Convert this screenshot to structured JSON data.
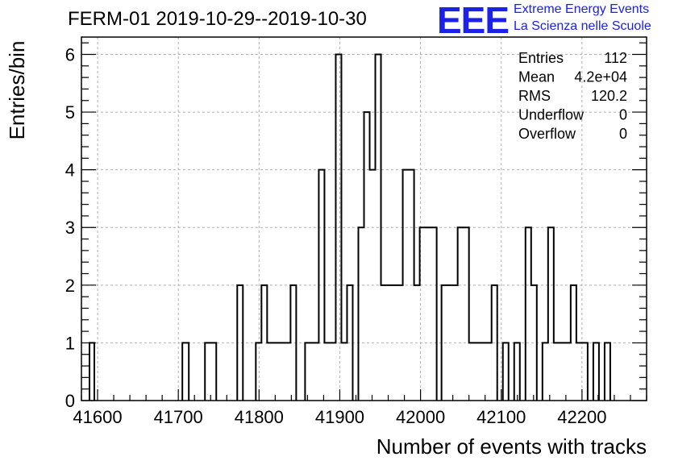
{
  "title": "FERM-01 2019-10-29--2019-10-30",
  "logo": {
    "mark": "EEE",
    "line1": "Extreme Energy Events",
    "line2": "La Scienza nelle Scuole",
    "color": "#1b22e6"
  },
  "stats": [
    {
      "label": "Entries",
      "value": "112"
    },
    {
      "label": "Mean",
      "value": "4.2e+04"
    },
    {
      "label": "RMS",
      "value": "120.2"
    },
    {
      "label": "Underflow",
      "value": "0"
    },
    {
      "label": "Overflow",
      "value": "0"
    }
  ],
  "chart_data": {
    "type": "histogram",
    "title": "FERM-01 2019-10-29--2019-10-30",
    "xlabel": "Number of events with tracks",
    "ylabel": "Entries/bin",
    "xlim": [
      41580,
      42280
    ],
    "ylim": [
      0,
      6.3
    ],
    "xticks": [
      41600,
      41700,
      41800,
      41900,
      42000,
      42100,
      42200
    ],
    "yticks": [
      0,
      1,
      2,
      3,
      4,
      5,
      6
    ],
    "grid": true,
    "line_color": "#000000",
    "bins": [
      {
        "x0": 41590,
        "x1": 41596,
        "count": 1
      },
      {
        "x0": 41705,
        "x1": 41713,
        "count": 1
      },
      {
        "x0": 41733,
        "x1": 41747,
        "count": 1
      },
      {
        "x0": 41773,
        "x1": 41780,
        "count": 2
      },
      {
        "x0": 41796,
        "x1": 41803,
        "count": 1
      },
      {
        "x0": 41803,
        "x1": 41810,
        "count": 2
      },
      {
        "x0": 41810,
        "x1": 41839,
        "count": 1
      },
      {
        "x0": 41839,
        "x1": 41846,
        "count": 2
      },
      {
        "x0": 41857,
        "x1": 41874,
        "count": 1
      },
      {
        "x0": 41874,
        "x1": 41881,
        "count": 4
      },
      {
        "x0": 41881,
        "x1": 41895,
        "count": 1
      },
      {
        "x0": 41895,
        "x1": 41902,
        "count": 6
      },
      {
        "x0": 41902,
        "x1": 41909,
        "count": 1
      },
      {
        "x0": 41909,
        "x1": 41916,
        "count": 2
      },
      {
        "x0": 41923,
        "x1": 41930,
        "count": 3
      },
      {
        "x0": 41930,
        "x1": 41937,
        "count": 5
      },
      {
        "x0": 41937,
        "x1": 41944,
        "count": 4
      },
      {
        "x0": 41944,
        "x1": 41951,
        "count": 6
      },
      {
        "x0": 41951,
        "x1": 41978,
        "count": 2
      },
      {
        "x0": 41978,
        "x1": 41992,
        "count": 4
      },
      {
        "x0": 41992,
        "x1": 41999,
        "count": 2
      },
      {
        "x0": 41999,
        "x1": 42020,
        "count": 3
      },
      {
        "x0": 42026,
        "x1": 42046,
        "count": 2
      },
      {
        "x0": 42046,
        "x1": 42060,
        "count": 3
      },
      {
        "x0": 42060,
        "x1": 42088,
        "count": 1
      },
      {
        "x0": 42088,
        "x1": 42095,
        "count": 2
      },
      {
        "x0": 42102,
        "x1": 42109,
        "count": 1
      },
      {
        "x0": 42116,
        "x1": 42123,
        "count": 1
      },
      {
        "x0": 42130,
        "x1": 42137,
        "count": 3
      },
      {
        "x0": 42137,
        "x1": 42144,
        "count": 2
      },
      {
        "x0": 42151,
        "x1": 42158,
        "count": 1
      },
      {
        "x0": 42158,
        "x1": 42165,
        "count": 3
      },
      {
        "x0": 42165,
        "x1": 42186,
        "count": 1
      },
      {
        "x0": 42186,
        "x1": 42193,
        "count": 2
      },
      {
        "x0": 42193,
        "x1": 42207,
        "count": 1
      },
      {
        "x0": 42214,
        "x1": 42221,
        "count": 1
      },
      {
        "x0": 42228,
        "x1": 42235,
        "count": 1
      }
    ]
  }
}
